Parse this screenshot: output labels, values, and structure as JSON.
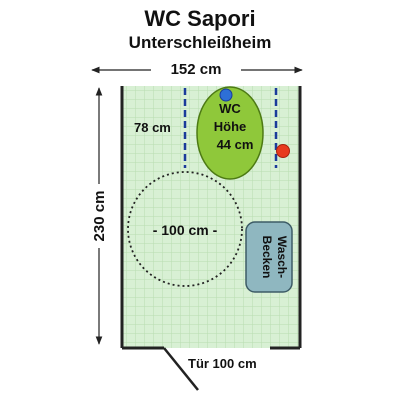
{
  "title": "WC Sapori",
  "subtitle": "Unterschleißheim",
  "dimensions": {
    "width": "152 cm",
    "depth": "230 cm",
    "grab_bar_spacing": "78 cm",
    "turning_circle": "- 100 cm -",
    "door": "Tür 100 cm"
  },
  "toilet": {
    "line1": "WC",
    "line2": "Höhe",
    "line3": "44 cm"
  },
  "sink": {
    "line1": "Wasch-",
    "line2": "Becken"
  },
  "colors": {
    "floor": "#d8f0d4",
    "grid": "#b8ddb0",
    "toilet": "#8fc83a",
    "sink": "#8fb7c0",
    "grab_bar": "#1a3b9a",
    "flush_button": "#2d6fd6",
    "alarm_button": "#e83a1e"
  }
}
